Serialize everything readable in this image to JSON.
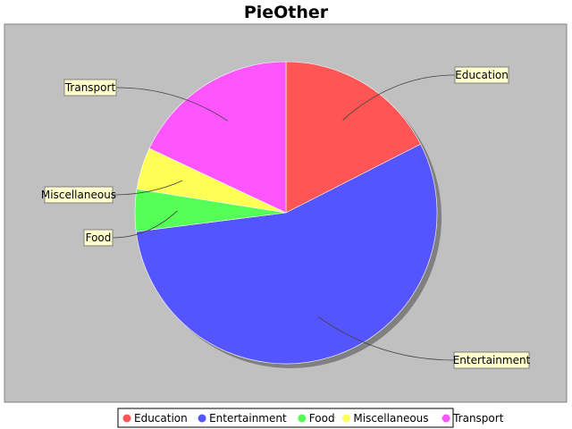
{
  "chart_data": {
    "type": "pie",
    "title": "PieOther",
    "categories": [
      "Education",
      "Entertainment",
      "Food",
      "Miscellaneous",
      "Transport"
    ],
    "values": [
      17.5,
      55.5,
      4.5,
      4.5,
      18.0
    ],
    "colors": [
      "#ff5555",
      "#5555ff",
      "#55ff55",
      "#ffff55",
      "#ff55ff"
    ],
    "start_angle_deg": 90,
    "direction": "clockwise",
    "plot_background": "#c0c0c0",
    "label_background": "#ffffcc",
    "legend_position": "bottom",
    "grid": false
  }
}
